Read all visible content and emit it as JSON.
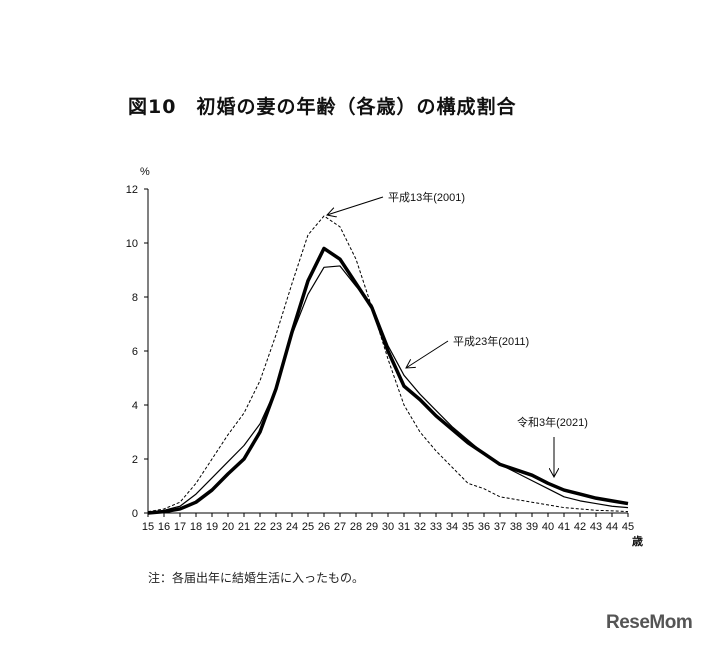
{
  "chart_data": {
    "type": "line",
    "title": "図10　初婚の妻の年齢（各歳）の構成割合",
    "ylabel": "%",
    "xlabel": "歳",
    "ylim": [
      0,
      12
    ],
    "yticks": [
      0,
      2,
      4,
      6,
      8,
      10,
      12
    ],
    "x": [
      15,
      16,
      17,
      18,
      19,
      20,
      21,
      22,
      23,
      24,
      25,
      26,
      27,
      28,
      29,
      30,
      31,
      32,
      33,
      34,
      35,
      36,
      37,
      38,
      39,
      40,
      41,
      42,
      43,
      44,
      45
    ],
    "series": [
      {
        "name": "平成13年(2001)",
        "style": "dashed",
        "values": [
          0.05,
          0.15,
          0.4,
          1.1,
          2.0,
          2.9,
          3.7,
          4.9,
          6.6,
          8.5,
          10.3,
          11.0,
          10.6,
          9.4,
          7.6,
          5.7,
          4.0,
          3.0,
          2.3,
          1.7,
          1.1,
          0.9,
          0.6,
          0.5,
          0.4,
          0.3,
          0.2,
          0.15,
          0.1,
          0.08,
          0.05
        ]
      },
      {
        "name": "平成23年(2011)",
        "style": "thin",
        "values": [
          0.02,
          0.1,
          0.25,
          0.7,
          1.3,
          1.9,
          2.5,
          3.3,
          4.6,
          6.6,
          8.1,
          9.1,
          9.15,
          8.4,
          7.7,
          6.2,
          5.1,
          4.4,
          3.8,
          3.2,
          2.7,
          2.2,
          1.8,
          1.5,
          1.2,
          0.9,
          0.6,
          0.45,
          0.35,
          0.25,
          0.2
        ]
      },
      {
        "name": "令和3年(2021)",
        "style": "thick",
        "values": [
          0,
          0.05,
          0.15,
          0.4,
          0.85,
          1.45,
          2.0,
          3.0,
          4.6,
          6.7,
          8.6,
          9.8,
          9.4,
          8.5,
          7.6,
          6.0,
          4.7,
          4.2,
          3.6,
          3.1,
          2.6,
          2.2,
          1.8,
          1.6,
          1.4,
          1.1,
          0.85,
          0.7,
          0.55,
          0.45,
          0.35
        ]
      }
    ],
    "note": "注：各届出年に結婚生活に入ったもの。"
  },
  "brand": "ReseMom"
}
